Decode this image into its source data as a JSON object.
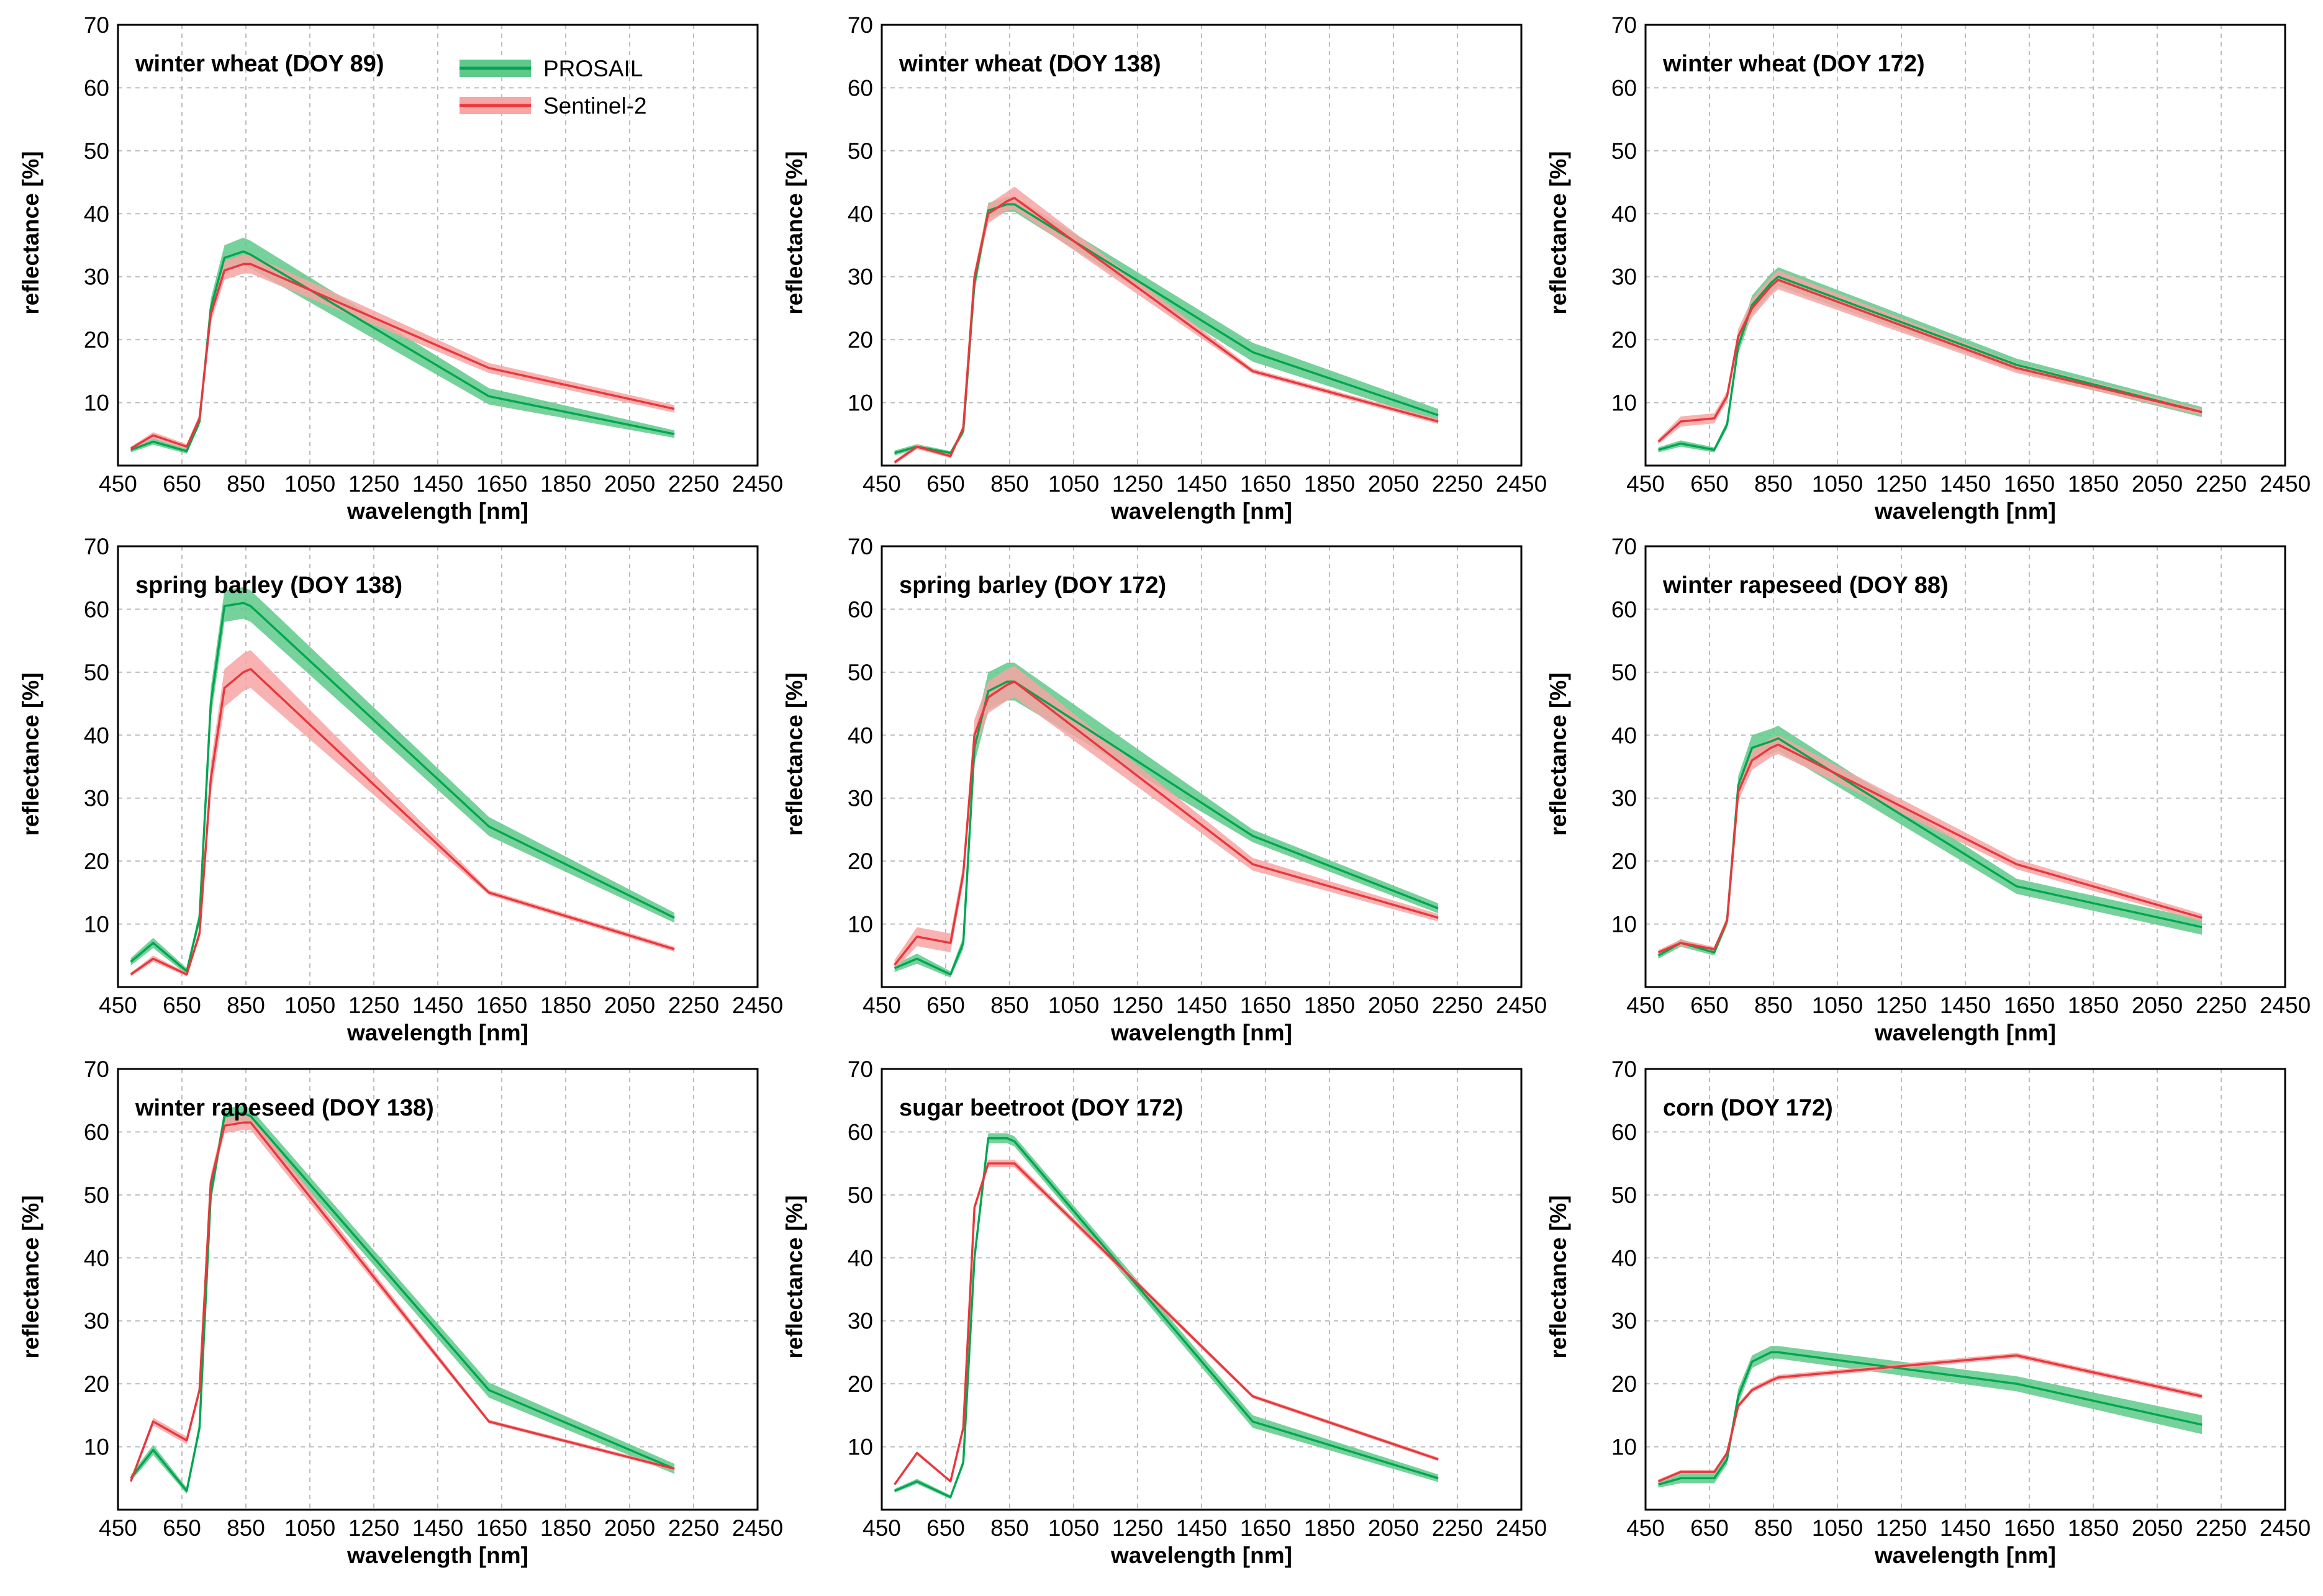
{
  "legend": {
    "prosail": "PROSAIL",
    "sentinel": "Sentinel-2",
    "prosail_color": "#00a651",
    "prosail_band": "#5fc98a",
    "sentinel_color": "#e8383d",
    "sentinel_band": "#f7a5a5"
  },
  "chart_data": [
    {
      "type": "line",
      "title": "winter wheat (DOY 89)",
      "xlabel": "wavelength [nm]",
      "ylabel": "reflectance [%]",
      "xlim": [
        450,
        2450
      ],
      "ylim": [
        0,
        70
      ],
      "xticks": [
        "450",
        "650",
        "850",
        "1050",
        "1250",
        "1450",
        "1650",
        "1850",
        "2050",
        "2250",
        "2450"
      ],
      "yticks": [
        "10",
        "20",
        "30",
        "40",
        "50",
        "60",
        "70"
      ],
      "x": [
        490,
        560,
        665,
        705,
        740,
        783,
        842,
        865,
        1610,
        2190
      ],
      "series": [
        {
          "name": "PROSAIL",
          "values": [
            2.5,
            3.8,
            2.3,
            7.0,
            25.0,
            33.0,
            34.0,
            33.5,
            11.0,
            5.0
          ],
          "spread": [
            0.4,
            0.5,
            0.4,
            0.6,
            1.5,
            2.0,
            2.2,
            2.2,
            1.3,
            0.6
          ]
        },
        {
          "name": "Sentinel-2",
          "values": [
            2.7,
            4.8,
            3.0,
            7.5,
            24.0,
            31.0,
            32.0,
            32.0,
            15.5,
            9.0
          ],
          "spread": [
            0.3,
            0.5,
            0.4,
            0.6,
            1.3,
            1.5,
            1.5,
            1.5,
            0.8,
            0.6
          ]
        }
      ]
    },
    {
      "type": "line",
      "title": "winter wheat (DOY 138)",
      "xlabel": "wavelength [nm]",
      "ylabel": "reflectance [%]",
      "xlim": [
        450,
        2450
      ],
      "ylim": [
        0,
        70
      ],
      "xticks": [
        "450",
        "650",
        "850",
        "1050",
        "1250",
        "1450",
        "1650",
        "1850",
        "2050",
        "2250",
        "2450"
      ],
      "yticks": [
        "10",
        "20",
        "30",
        "40",
        "50",
        "60",
        "70"
      ],
      "x": [
        490,
        560,
        665,
        705,
        740,
        783,
        842,
        865,
        1610,
        2190
      ],
      "series": [
        {
          "name": "PROSAIL",
          "values": [
            2.0,
            3.0,
            2.0,
            5.5,
            29.0,
            40.5,
            41.5,
            41.5,
            18.0,
            8.0
          ],
          "spread": [
            0.4,
            0.4,
            0.3,
            0.6,
            1.5,
            1.2,
            1.2,
            1.2,
            1.5,
            1.0
          ]
        },
        {
          "name": "Sentinel-2",
          "values": [
            0.5,
            3.0,
            1.5,
            6.0,
            30.0,
            40.0,
            42.0,
            42.5,
            15.0,
            7.0
          ],
          "spread": [
            0.3,
            0.4,
            0.3,
            0.5,
            1.0,
            1.5,
            1.5,
            1.8,
            0.4,
            0.4
          ]
        }
      ]
    },
    {
      "type": "line",
      "title": "winter wheat (DOY 172)",
      "xlabel": "wavelength [nm]",
      "ylabel": "reflectance [%]",
      "xlim": [
        450,
        2450
      ],
      "ylim": [
        0,
        70
      ],
      "xticks": [
        "450",
        "650",
        "850",
        "1050",
        "1250",
        "1450",
        "1650",
        "1850",
        "2050",
        "2250",
        "2450"
      ],
      "yticks": [
        "10",
        "20",
        "30",
        "40",
        "50",
        "60",
        "70"
      ],
      "x": [
        490,
        560,
        665,
        705,
        740,
        783,
        842,
        865,
        1610,
        2190
      ],
      "series": [
        {
          "name": "PROSAIL",
          "values": [
            2.5,
            3.5,
            2.5,
            6.5,
            19.0,
            25.5,
            29.0,
            30.0,
            16.0,
            8.5
          ],
          "spread": [
            0.4,
            0.5,
            0.4,
            0.6,
            1.2,
            1.5,
            1.5,
            1.5,
            1.0,
            0.8
          ]
        },
        {
          "name": "Sentinel-2",
          "values": [
            3.8,
            7.0,
            7.5,
            11.0,
            20.5,
            25.0,
            28.5,
            29.5,
            15.5,
            8.5
          ],
          "spread": [
            0.4,
            0.8,
            0.8,
            0.8,
            1.2,
            1.5,
            1.5,
            1.5,
            0.8,
            0.5
          ]
        }
      ]
    },
    {
      "type": "line",
      "title": "spring barley (DOY 138)",
      "xlabel": "wavelength [nm]",
      "ylabel": "reflectance [%]",
      "xlim": [
        450,
        2450
      ],
      "ylim": [
        0,
        70
      ],
      "xticks": [
        "450",
        "650",
        "850",
        "1050",
        "1250",
        "1450",
        "1650",
        "1850",
        "2050",
        "2250",
        "2450"
      ],
      "yticks": [
        "10",
        "20",
        "30",
        "40",
        "50",
        "60",
        "70"
      ],
      "x": [
        490,
        560,
        665,
        705,
        740,
        783,
        842,
        865,
        1610,
        2190
      ],
      "series": [
        {
          "name": "PROSAIL",
          "values": [
            4.0,
            7.0,
            2.5,
            11.0,
            45.0,
            60.5,
            61.0,
            60.5,
            25.5,
            11.0
          ],
          "spread": [
            0.6,
            0.8,
            0.5,
            1.0,
            2.5,
            2.5,
            2.5,
            2.5,
            1.5,
            0.8
          ]
        },
        {
          "name": "Sentinel-2",
          "values": [
            2.0,
            4.5,
            2.0,
            8.5,
            33.0,
            47.5,
            50.0,
            50.5,
            15.0,
            6.0
          ],
          "spread": [
            0.3,
            0.5,
            0.3,
            0.8,
            2.5,
            3.0,
            3.0,
            3.0,
            0.4,
            0.4
          ]
        }
      ]
    },
    {
      "type": "line",
      "title": "spring barley (DOY 172)",
      "xlabel": "wavelength [nm]",
      "ylabel": "reflectance [%]",
      "xlim": [
        450,
        2450
      ],
      "ylim": [
        0,
        70
      ],
      "xticks": [
        "450",
        "650",
        "850",
        "1050",
        "1250",
        "1450",
        "1650",
        "1850",
        "2050",
        "2250",
        "2450"
      ],
      "yticks": [
        "10",
        "20",
        "30",
        "40",
        "50",
        "60",
        "70"
      ],
      "x": [
        490,
        560,
        665,
        705,
        740,
        783,
        842,
        865,
        1610,
        2190
      ],
      "series": [
        {
          "name": "PROSAIL",
          "values": [
            3.0,
            4.5,
            2.0,
            7.0,
            38.0,
            47.0,
            48.5,
            48.5,
            24.0,
            12.5
          ],
          "spread": [
            0.6,
            0.8,
            0.5,
            1.0,
            2.5,
            3.0,
            3.0,
            3.0,
            1.0,
            0.8
          ]
        },
        {
          "name": "Sentinel-2",
          "values": [
            3.5,
            8.0,
            7.0,
            18.0,
            40.0,
            46.0,
            48.0,
            48.5,
            19.5,
            11.0
          ],
          "spread": [
            0.8,
            1.5,
            1.5,
            1.5,
            2.5,
            2.5,
            2.5,
            2.5,
            1.0,
            0.6
          ]
        }
      ]
    },
    {
      "type": "line",
      "title": "winter rapeseed (DOY 88)",
      "xlabel": "wavelength [nm]",
      "ylabel": "reflectance [%]",
      "xlim": [
        450,
        2450
      ],
      "ylim": [
        0,
        70
      ],
      "xticks": [
        "450",
        "650",
        "850",
        "1050",
        "1250",
        "1450",
        "1650",
        "1850",
        "2050",
        "2250",
        "2450"
      ],
      "yticks": [
        "10",
        "20",
        "30",
        "40",
        "50",
        "60",
        "70"
      ],
      "x": [
        490,
        560,
        665,
        705,
        740,
        783,
        842,
        865,
        1610,
        2190
      ],
      "series": [
        {
          "name": "PROSAIL",
          "values": [
            5.0,
            7.0,
            5.5,
            10.5,
            32.0,
            38.0,
            39.0,
            39.5,
            16.0,
            9.5
          ],
          "spread": [
            0.5,
            0.6,
            0.5,
            0.8,
            1.5,
            2.0,
            2.0,
            2.0,
            1.2,
            1.2
          ]
        },
        {
          "name": "Sentinel-2",
          "values": [
            5.5,
            7.0,
            6.0,
            10.5,
            31.0,
            36.0,
            38.0,
            38.5,
            19.5,
            11.0
          ],
          "spread": [
            0.4,
            0.5,
            0.4,
            0.6,
            1.5,
            1.5,
            1.5,
            1.5,
            0.8,
            0.6
          ]
        }
      ]
    },
    {
      "type": "line",
      "title": "winter rapeseed (DOY 138)",
      "xlabel": "wavelength [nm]",
      "ylabel": "reflectance [%]",
      "xlim": [
        450,
        2450
      ],
      "ylim": [
        0,
        70
      ],
      "xticks": [
        "450",
        "650",
        "850",
        "1050",
        "1250",
        "1450",
        "1650",
        "1850",
        "2050",
        "2250",
        "2450"
      ],
      "yticks": [
        "10",
        "20",
        "30",
        "40",
        "50",
        "60",
        "70"
      ],
      "x": [
        490,
        560,
        665,
        705,
        740,
        783,
        842,
        865,
        1610,
        2190
      ],
      "series": [
        {
          "name": "PROSAIL",
          "values": [
            5.0,
            9.5,
            3.0,
            13.0,
            50.0,
            62.5,
            63.0,
            62.5,
            19.0,
            6.5
          ],
          "spread": [
            0.5,
            0.8,
            0.5,
            1.0,
            1.5,
            1.2,
            1.2,
            1.2,
            1.2,
            0.8
          ]
        },
        {
          "name": "Sentinel-2",
          "values": [
            4.5,
            14.0,
            11.0,
            19.0,
            52.0,
            61.0,
            61.5,
            61.5,
            14.0,
            6.5
          ],
          "spread": [
            0.4,
            0.6,
            0.6,
            0.8,
            1.2,
            1.2,
            1.2,
            1.2,
            0.3,
            0.3
          ]
        }
      ]
    },
    {
      "type": "line",
      "title": "sugar beetroot (DOY 172)",
      "xlabel": "wavelength [nm]",
      "ylabel": "reflectance [%]",
      "xlim": [
        450,
        2450
      ],
      "ylim": [
        0,
        70
      ],
      "xticks": [
        "450",
        "650",
        "850",
        "1050",
        "1250",
        "1450",
        "1650",
        "1850",
        "2050",
        "2250",
        "2450"
      ],
      "yticks": [
        "10",
        "20",
        "30",
        "40",
        "50",
        "60",
        "70"
      ],
      "x": [
        490,
        560,
        665,
        705,
        740,
        783,
        842,
        865,
        1610,
        2190
      ],
      "series": [
        {
          "name": "PROSAIL",
          "values": [
            3.0,
            4.5,
            2.0,
            7.5,
            40.0,
            59.0,
            59.0,
            58.5,
            14.0,
            5.0
          ],
          "spread": [
            0.3,
            0.4,
            0.3,
            0.6,
            1.0,
            0.8,
            0.8,
            0.8,
            1.0,
            0.6
          ]
        },
        {
          "name": "Sentinel-2",
          "values": [
            4.0,
            9.0,
            4.5,
            13.0,
            48.0,
            55.0,
            55.0,
            55.0,
            18.0,
            8.0
          ],
          "spread": [
            0.2,
            0.3,
            0.2,
            0.4,
            0.6,
            0.6,
            0.6,
            0.6,
            0.3,
            0.3
          ]
        }
      ]
    },
    {
      "type": "line",
      "title": "corn (DOY 172)",
      "xlabel": "wavelength [nm]",
      "ylabel": "reflectance [%]",
      "xlim": [
        450,
        2450
      ],
      "ylim": [
        0,
        70
      ],
      "xticks": [
        "450",
        "650",
        "850",
        "1050",
        "1250",
        "1450",
        "1650",
        "1850",
        "2050",
        "2250",
        "2450"
      ],
      "yticks": [
        "10",
        "20",
        "30",
        "40",
        "50",
        "60",
        "70"
      ],
      "x": [
        490,
        560,
        665,
        705,
        740,
        783,
        842,
        865,
        1610,
        2190
      ],
      "series": [
        {
          "name": "PROSAIL",
          "values": [
            4.0,
            5.0,
            5.0,
            8.0,
            18.0,
            23.5,
            25.0,
            25.0,
            20.0,
            13.5
          ],
          "spread": [
            0.5,
            0.8,
            0.8,
            0.8,
            1.2,
            1.0,
            1.0,
            1.0,
            1.2,
            1.5
          ]
        },
        {
          "name": "Sentinel-2",
          "values": [
            4.5,
            6.0,
            6.0,
            9.0,
            16.5,
            19.0,
            20.5,
            21.0,
            24.5,
            18.0
          ],
          "spread": [
            0.3,
            0.3,
            0.3,
            0.4,
            0.4,
            0.4,
            0.4,
            0.4,
            0.4,
            0.4
          ]
        }
      ]
    }
  ]
}
